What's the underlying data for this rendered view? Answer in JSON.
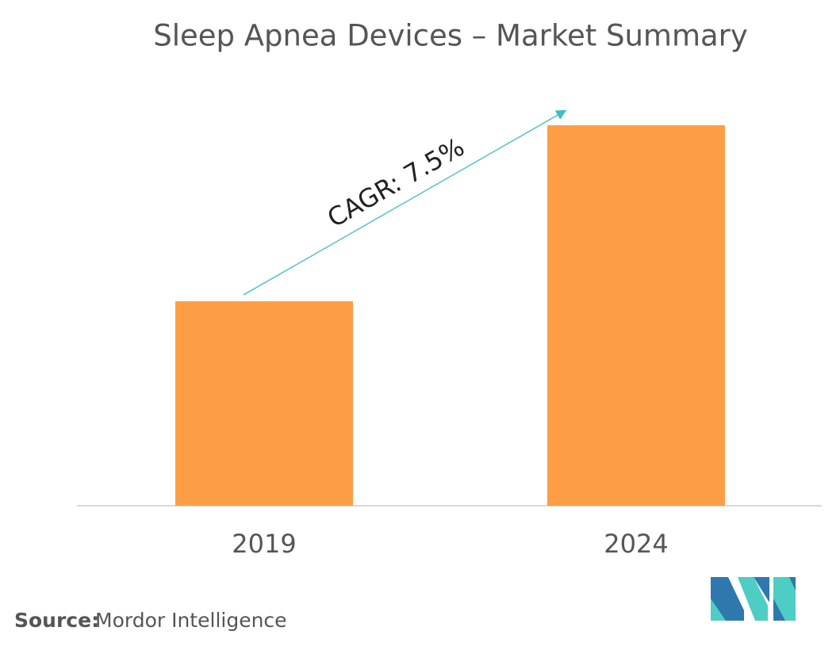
{
  "chart_data": {
    "type": "bar",
    "title": "Sleep Apnea Devices – Market Summary",
    "categories": [
      "2019",
      "2024"
    ],
    "values": [
      49.6,
      92.3
    ],
    "color": "#fd9e46",
    "ylim": [
      0,
      100
    ],
    "annotation": "CAGR: 7.5%",
    "source_label": "Source:",
    "source": "Mordor Intelligence"
  }
}
